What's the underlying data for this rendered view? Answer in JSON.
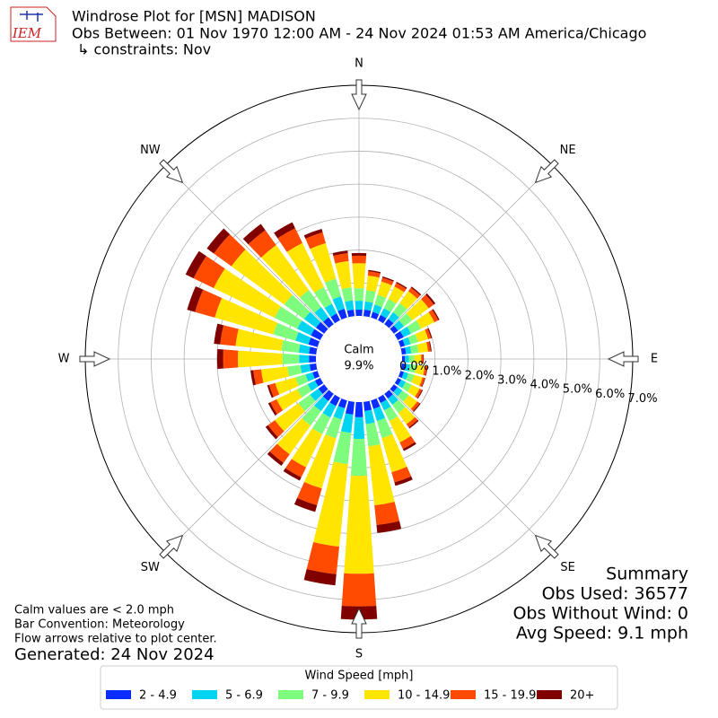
{
  "chart_data": {
    "type": "windrose",
    "logo_text": "IEM",
    "title": "Windrose Plot for [MSN] MADISON",
    "subtitle": "Obs Between: 01 Nov 1970 12:00 AM - 24 Nov 2024 01:53 AM America/Chicago",
    "constraints": "↳ constraints: Nov",
    "x": [
      0,
      10,
      20,
      30,
      40,
      50,
      60,
      70,
      80,
      90,
      100,
      110,
      120,
      130,
      140,
      150,
      160,
      170,
      180,
      190,
      200,
      210,
      220,
      230,
      240,
      250,
      260,
      270,
      280,
      290,
      300,
      310,
      320,
      330,
      340,
      350
    ],
    "compass_labels": [
      "N",
      "NE",
      "E",
      "SE",
      "S",
      "SW",
      "W",
      "NW"
    ],
    "rlim": [
      0,
      7
    ],
    "rticks": [
      {
        "value": 0,
        "label": "0.0%"
      },
      {
        "value": 1,
        "label": "1.0%"
      },
      {
        "value": 2,
        "label": "2.0%"
      },
      {
        "value": 3,
        "label": "3.0%"
      },
      {
        "value": 4,
        "label": "4.0%"
      },
      {
        "value": 5,
        "label": "5.0%"
      },
      {
        "value": 6,
        "label": "6.0%"
      },
      {
        "value": 7,
        "label": "7.0%"
      }
    ],
    "calm_label": "Calm",
    "calm_value": 9.9,
    "calm_value_label": "9.9%",
    "legend_title": "Wind Speed [mph]",
    "series": [
      {
        "name": "2 - 4.9",
        "color": "#0a2cff",
        "values": [
          0.19,
          0.2,
          0.18,
          0.18,
          0.2,
          0.16,
          0.2,
          0.14,
          0.13,
          0.09,
          0.11,
          0.11,
          0.12,
          0.14,
          0.18,
          0.18,
          0.27,
          0.28,
          0.46,
          0.39,
          0.25,
          0.28,
          0.27,
          0.22,
          0.18,
          0.16,
          0.2,
          0.21,
          0.22,
          0.29,
          0.32,
          0.31,
          0.26,
          0.23,
          0.28,
          0.2
        ]
      },
      {
        "name": "5 - 6.9",
        "color": "#00d4f0",
        "values": [
          0.27,
          0.25,
          0.23,
          0.23,
          0.25,
          0.22,
          0.25,
          0.18,
          0.16,
          0.12,
          0.14,
          0.14,
          0.15,
          0.18,
          0.23,
          0.25,
          0.38,
          0.4,
          0.66,
          0.56,
          0.35,
          0.39,
          0.38,
          0.31,
          0.25,
          0.22,
          0.28,
          0.3,
          0.31,
          0.41,
          0.46,
          0.44,
          0.38,
          0.33,
          0.39,
          0.28
        ]
      },
      {
        "name": "7 - 9.9",
        "color": "#7dfc7d",
        "values": [
          0.38,
          0.34,
          0.31,
          0.31,
          0.34,
          0.31,
          0.34,
          0.24,
          0.22,
          0.16,
          0.19,
          0.19,
          0.2,
          0.24,
          0.31,
          0.36,
          0.54,
          0.68,
          1.12,
          0.95,
          0.6,
          0.56,
          0.54,
          0.44,
          0.35,
          0.32,
          0.4,
          0.51,
          0.53,
          0.7,
          0.77,
          0.75,
          0.64,
          0.56,
          0.56,
          0.4
        ]
      },
      {
        "name": "10 - 14.9",
        "color": "#ffe500",
        "values": [
          0.76,
          0.45,
          0.42,
          0.42,
          0.45,
          0.62,
          0.45,
          0.32,
          0.29,
          0.21,
          0.26,
          0.26,
          0.27,
          0.32,
          0.42,
          0.72,
          1.08,
          1.8,
          2.97,
          2.52,
          1.58,
          1.12,
          1.08,
          0.88,
          0.7,
          0.64,
          0.8,
          1.35,
          1.4,
          1.85,
          2.05,
          1.98,
          1.69,
          1.49,
          1.12,
          0.8
        ]
      },
      {
        "name": "15 - 19.9",
        "color": "#ff4a00",
        "values": [
          0.23,
          0.13,
          0.12,
          0.12,
          0.13,
          0.19,
          0.13,
          0.09,
          0.08,
          0.06,
          0.07,
          0.07,
          0.08,
          0.09,
          0.12,
          0.22,
          0.32,
          0.6,
          0.99,
          0.84,
          0.53,
          0.34,
          0.32,
          0.26,
          0.21,
          0.19,
          0.24,
          0.45,
          0.47,
          0.62,
          0.68,
          0.66,
          0.56,
          0.5,
          0.34,
          0.24
        ]
      },
      {
        "name": "20+",
        "color": "#800000",
        "values": [
          0.08,
          0.04,
          0.04,
          0.04,
          0.04,
          0.06,
          0.04,
          0.03,
          0.03,
          0.02,
          0.02,
          0.02,
          0.03,
          0.03,
          0.04,
          0.07,
          0.11,
          0.24,
          0.4,
          0.34,
          0.21,
          0.11,
          0.11,
          0.09,
          0.07,
          0.06,
          0.08,
          0.18,
          0.19,
          0.25,
          0.27,
          0.26,
          0.23,
          0.2,
          0.11,
          0.08
        ]
      }
    ],
    "notes": [
      "Calm values are < 2.0 mph",
      "Bar Convention: Meteorology",
      "Flow arrows relative to plot center."
    ],
    "generated": "Generated: 24 Nov 2024",
    "summary": [
      "Summary",
      "Obs Used: 36577",
      "Obs Without Wind: 0",
      "Avg Speed: 9.1 mph"
    ]
  }
}
